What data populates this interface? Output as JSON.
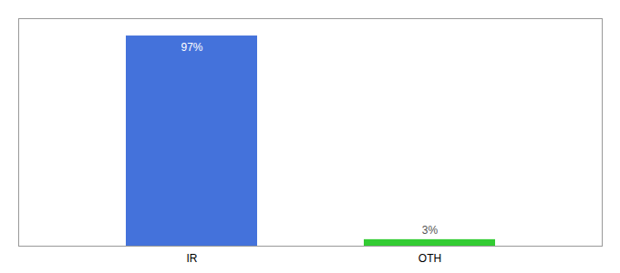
{
  "chart_data": {
    "type": "bar",
    "categories": [
      "IR",
      "OTH"
    ],
    "values": [
      97,
      3
    ],
    "value_labels": [
      "97%",
      "3%"
    ],
    "colors": [
      "#4472db",
      "#33cc33"
    ],
    "ylim": [
      0,
      105
    ],
    "data_labels": true,
    "grid": false,
    "tick_labels": "x"
  }
}
